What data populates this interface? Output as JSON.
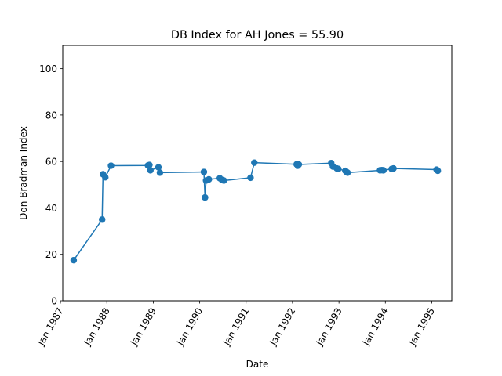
{
  "chart_data": {
    "type": "line",
    "title": "DB Index for AH Jones = 55.90",
    "xlabel": "Date",
    "ylabel": "Don Bradman Index",
    "ylim": [
      0,
      110
    ],
    "xlim": [
      "1987-01-19",
      "1995-06-08"
    ],
    "yticks": [
      0,
      20,
      40,
      60,
      80,
      100
    ],
    "xticks": [
      {
        "date": "1987-01-01",
        "label": "Jan 1987"
      },
      {
        "date": "1988-01-01",
        "label": "Jan 1988"
      },
      {
        "date": "1989-01-01",
        "label": "Jan 1989"
      },
      {
        "date": "1990-01-01",
        "label": "Jan 1990"
      },
      {
        "date": "1991-01-01",
        "label": "Jan 1991"
      },
      {
        "date": "1992-01-01",
        "label": "Jan 1992"
      },
      {
        "date": "1993-01-01",
        "label": "Jan 1993"
      },
      {
        "date": "1994-01-01",
        "label": "Jan 1994"
      },
      {
        "date": "1995-01-01",
        "label": "Jan 1995"
      }
    ],
    "grid": false,
    "series": [
      {
        "color": "#1f77b4",
        "marker": "circle",
        "points": [
          {
            "x": "1987-04-15",
            "y": 17.5
          },
          {
            "x": "1987-11-25",
            "y": 35.0
          },
          {
            "x": "1987-12-02",
            "y": 54.5
          },
          {
            "x": "1987-12-20",
            "y": 53.2
          },
          {
            "x": "1988-02-03",
            "y": 58.2
          },
          {
            "x": "1988-11-20",
            "y": 58.3
          },
          {
            "x": "1988-12-01",
            "y": 58.5
          },
          {
            "x": "1988-12-09",
            "y": 56.2
          },
          {
            "x": "1989-02-10",
            "y": 57.5
          },
          {
            "x": "1989-02-22",
            "y": 55.2
          },
          {
            "x": "1990-02-03",
            "y": 55.5
          },
          {
            "x": "1990-02-12",
            "y": 44.5
          },
          {
            "x": "1990-02-20",
            "y": 51.8
          },
          {
            "x": "1990-03-14",
            "y": 52.3
          },
          {
            "x": "1990-06-08",
            "y": 52.8
          },
          {
            "x": "1990-06-24",
            "y": 52.1
          },
          {
            "x": "1990-07-10",
            "y": 51.8
          },
          {
            "x": "1991-02-05",
            "y": 53.0
          },
          {
            "x": "1991-03-07",
            "y": 59.5
          },
          {
            "x": "1992-02-03",
            "y": 58.8
          },
          {
            "x": "1992-02-12",
            "y": 58.2
          },
          {
            "x": "1992-02-20",
            "y": 58.7
          },
          {
            "x": "1992-11-01",
            "y": 59.3
          },
          {
            "x": "1992-11-15",
            "y": 57.8
          },
          {
            "x": "1992-12-15",
            "y": 57.0
          },
          {
            "x": "1992-12-27",
            "y": 56.8
          },
          {
            "x": "1993-02-20",
            "y": 56.0
          },
          {
            "x": "1993-03-01",
            "y": 55.5
          },
          {
            "x": "1993-03-10",
            "y": 55.2
          },
          {
            "x": "1993-11-20",
            "y": 56.2
          },
          {
            "x": "1993-12-05",
            "y": 56.3
          },
          {
            "x": "1993-12-17",
            "y": 56.2
          },
          {
            "x": "1994-02-20",
            "y": 56.8
          },
          {
            "x": "1994-03-06",
            "y": 57.0
          },
          {
            "x": "1995-02-08",
            "y": 56.5
          },
          {
            "x": "1995-02-18",
            "y": 56.0
          }
        ]
      }
    ]
  }
}
